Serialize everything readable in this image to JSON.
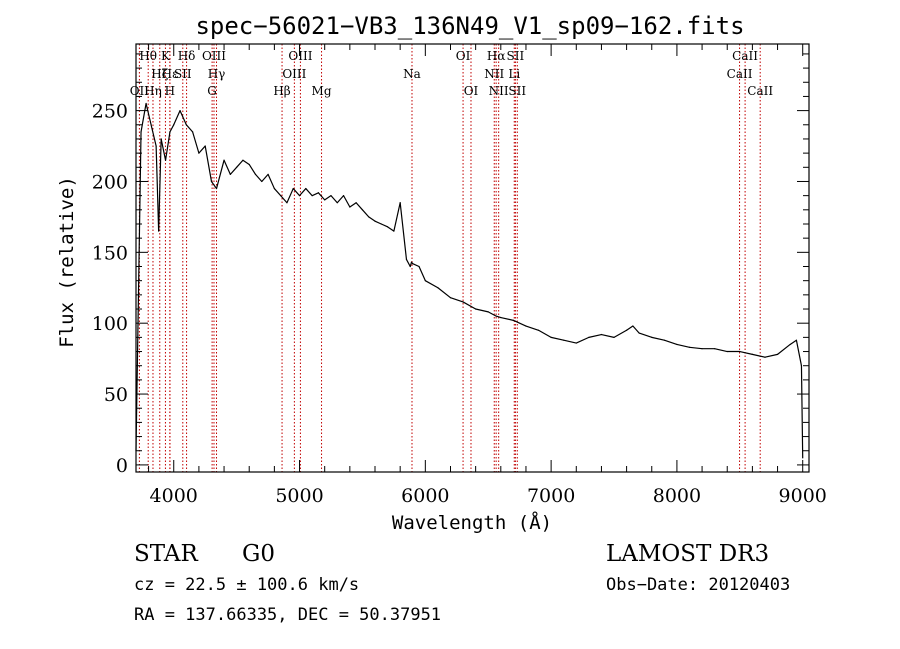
{
  "chart_data": {
    "type": "line",
    "title": "spec−56021−VB3_136N49_V1_sp09−162.fits",
    "xlabel": "Wavelength (Å)",
    "ylabel": "Flux (relative)",
    "xlim": [
      3700,
      9050
    ],
    "ylim": [
      -5,
      297
    ],
    "x_ticks": [
      4000,
      5000,
      6000,
      7000,
      8000,
      9000
    ],
    "y_ticks": [
      0,
      50,
      100,
      150,
      200,
      250
    ],
    "series": [
      {
        "name": "spectrum",
        "color": "#000000",
        "x": [
          3700,
          3740,
          3780,
          3820,
          3860,
          3880,
          3900,
          3935,
          3970,
          4000,
          4050,
          4100,
          4150,
          4200,
          4250,
          4300,
          4340,
          4400,
          4450,
          4500,
          4550,
          4600,
          4650,
          4700,
          4750,
          4800,
          4850,
          4900,
          4950,
          5000,
          5050,
          5100,
          5150,
          5200,
          5250,
          5300,
          5350,
          5400,
          5450,
          5500,
          5550,
          5600,
          5650,
          5700,
          5750,
          5800,
          5850,
          5880,
          5890,
          5900,
          5950,
          6000,
          6100,
          6200,
          6300,
          6400,
          6500,
          6563,
          6600,
          6700,
          6800,
          6900,
          7000,
          7100,
          7200,
          7300,
          7400,
          7500,
          7600,
          7650,
          7700,
          7800,
          7900,
          8000,
          8100,
          8200,
          8300,
          8400,
          8500,
          8600,
          8700,
          8800,
          8900,
          8950,
          8990,
          9000
        ],
        "y": [
          10,
          235,
          255,
          240,
          225,
          165,
          230,
          215,
          235,
          240,
          250,
          240,
          235,
          220,
          225,
          200,
          195,
          215,
          205,
          210,
          215,
          212,
          205,
          200,
          205,
          195,
          190,
          185,
          195,
          190,
          195,
          190,
          192,
          187,
          190,
          185,
          190,
          182,
          185,
          180,
          175,
          172,
          170,
          168,
          165,
          185,
          145,
          140,
          143,
          142,
          140,
          130,
          125,
          118,
          115,
          110,
          108,
          105,
          104,
          102,
          98,
          95,
          90,
          88,
          86,
          90,
          92,
          90,
          95,
          98,
          93,
          90,
          88,
          85,
          83,
          82,
          82,
          80,
          80,
          78,
          76,
          78,
          85,
          88,
          70,
          5
        ]
      }
    ],
    "line_markers": [
      {
        "name": "OII",
        "wavelength": 3727,
        "row": 2
      },
      {
        "name": "Hθ",
        "wavelength": 3797,
        "row": 0
      },
      {
        "name": "Hη",
        "wavelength": 3835,
        "row": 2
      },
      {
        "name": "Hζ",
        "wavelength": 3889,
        "row": 1
      },
      {
        "name": "K",
        "wavelength": 3934,
        "row": 0
      },
      {
        "name": "H",
        "wavelength": 3969,
        "row": 2
      },
      {
        "name": "Hε",
        "wavelength": 3970,
        "row": 1
      },
      {
        "name": "SII",
        "wavelength": 4072,
        "row": 1
      },
      {
        "name": "Hδ",
        "wavelength": 4102,
        "row": 0
      },
      {
        "name": "G",
        "wavelength": 4305,
        "row": 2
      },
      {
        "name": "OIII",
        "wavelength": 4320,
        "row": 0
      },
      {
        "name": "Hγ",
        "wavelength": 4340,
        "row": 1
      },
      {
        "name": "Hβ",
        "wavelength": 4861,
        "row": 2
      },
      {
        "name": "OIII",
        "wavelength": 4959,
        "row": 1
      },
      {
        "name": "OIII",
        "wavelength": 5007,
        "row": 0
      },
      {
        "name": "Mg",
        "wavelength": 5175,
        "row": 2
      },
      {
        "name": "Na",
        "wavelength": 5894,
        "row": 1
      },
      {
        "name": "OI",
        "wavelength": 6300,
        "row": 0
      },
      {
        "name": "OI",
        "wavelength": 6363,
        "row": 2
      },
      {
        "name": "NII",
        "wavelength": 6548,
        "row": 1
      },
      {
        "name": "Hα",
        "wavelength": 6563,
        "row": 0
      },
      {
        "name": "NII",
        "wavelength": 6583,
        "row": 2
      },
      {
        "name": "Li",
        "wavelength": 6707,
        "row": 1
      },
      {
        "name": "SII",
        "wavelength": 6716,
        "row": 0
      },
      {
        "name": "SII",
        "wavelength": 6731,
        "row": 2
      },
      {
        "name": "CaII",
        "wavelength": 8498,
        "row": 1
      },
      {
        "name": "CaII",
        "wavelength": 8542,
        "row": 0
      },
      {
        "name": "CaII",
        "wavelength": 8662,
        "row": 2
      }
    ],
    "marker_color": "#c00000"
  },
  "info": {
    "class": "STAR",
    "subclass": "G0",
    "survey": "LAMOST DR3",
    "cz": "cz = 22.5 ± 100.6 km/s",
    "obs_date": "Obs−Date: 20120403",
    "coords": "RA = 137.66335, DEC =  50.37951"
  }
}
